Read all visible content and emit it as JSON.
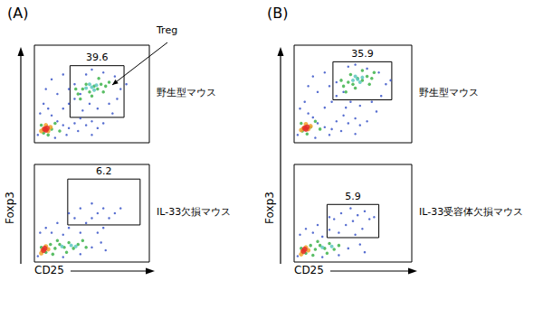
{
  "chart_data": [
    {
      "type": "scatter",
      "title": "野生型マウス",
      "xlim": [
        0,
        100
      ],
      "ylim": [
        0,
        100
      ],
      "tick_labels": false,
      "annotation": "Treg",
      "gate": {
        "x": [
          31,
          78
        ],
        "y": [
          26,
          79
        ],
        "value": 39.6
      },
      "series": [
        {
          "color": "#3a55c8",
          "values": [
            [
              5,
              30
            ],
            [
              8,
              40
            ],
            [
              12,
              35
            ],
            [
              15,
              28
            ],
            [
              20,
              22
            ],
            [
              25,
              18
            ],
            [
              30,
              15
            ],
            [
              35,
              20
            ],
            [
              40,
              25
            ],
            [
              38,
              12
            ],
            [
              45,
              18
            ],
            [
              50,
              22
            ],
            [
              55,
              15
            ],
            [
              60,
              20
            ],
            [
              25,
              35
            ],
            [
              30,
              40
            ],
            [
              35,
              45
            ],
            [
              40,
              50
            ],
            [
              35,
              60
            ],
            [
              30,
              55
            ],
            [
              45,
              70
            ],
            [
              50,
              75
            ],
            [
              60,
              72
            ],
            [
              70,
              68
            ],
            [
              75,
              55
            ],
            [
              72,
              45
            ],
            [
              65,
              40
            ],
            [
              55,
              35
            ],
            [
              48,
              40
            ],
            [
              80,
              60
            ],
            [
              20,
              50
            ],
            [
              10,
              55
            ],
            [
              15,
              65
            ],
            [
              25,
              70
            ],
            [
              42,
              33
            ],
            [
              68,
              30
            ],
            [
              3,
              8
            ],
            [
              18,
              5
            ],
            [
              28,
              8
            ],
            [
              50,
              8
            ]
          ]
        },
        {
          "color": "#3db34a",
          "values": [
            [
              8,
              10
            ],
            [
              12,
              8
            ],
            [
              15,
              14
            ],
            [
              6,
              18
            ],
            [
              18,
              20
            ],
            [
              22,
              12
            ],
            [
              38,
              50
            ],
            [
              42,
              55
            ],
            [
              48,
              52
            ],
            [
              52,
              58
            ],
            [
              55,
              55
            ],
            [
              58,
              60
            ],
            [
              45,
              60
            ],
            [
              50,
              48
            ],
            [
              62,
              58
            ],
            [
              40,
              45
            ],
            [
              60,
              52
            ],
            [
              65,
              62
            ],
            [
              36,
              55
            ],
            [
              56,
              66
            ]
          ]
        },
        {
          "color": "#5cc8c0",
          "values": [
            [
              45,
              56
            ],
            [
              50,
              57
            ],
            [
              54,
              59
            ],
            [
              48,
              60
            ],
            [
              52,
              54
            ]
          ]
        },
        {
          "color": "#f2a22a",
          "values": [
            [
              8,
              14
            ],
            [
              12,
              12
            ],
            [
              10,
              18
            ],
            [
              14,
              16
            ],
            [
              6,
              12
            ]
          ]
        },
        {
          "color": "#e3302a",
          "values": [
            [
              9,
              14
            ],
            [
              11,
              15
            ],
            [
              10,
              13
            ]
          ]
        }
      ]
    },
    {
      "type": "scatter",
      "title": "IL-33欠損マウス",
      "xlim": [
        0,
        100
      ],
      "ylim": [
        0,
        100
      ],
      "tick_labels": false,
      "gate": {
        "x": [
          29,
          92
        ],
        "y": [
          38,
          85
        ],
        "value": 6.2
      },
      "series": [
        {
          "color": "#3a55c8",
          "values": [
            [
              5,
              30
            ],
            [
              10,
              35
            ],
            [
              15,
              30
            ],
            [
              25,
              28
            ],
            [
              30,
              35
            ],
            [
              40,
              30
            ],
            [
              45,
              40
            ],
            [
              50,
              45
            ],
            [
              55,
              50
            ],
            [
              60,
              55
            ],
            [
              65,
              45
            ],
            [
              35,
              45
            ],
            [
              40,
              55
            ],
            [
              50,
              60
            ],
            [
              70,
              50
            ],
            [
              75,
              55
            ],
            [
              60,
              35
            ],
            [
              55,
              30
            ],
            [
              20,
              40
            ],
            [
              3,
              6
            ],
            [
              25,
              5
            ],
            [
              40,
              8
            ],
            [
              50,
              15
            ],
            [
              58,
              20
            ],
            [
              62,
              12
            ],
            [
              30,
              50
            ]
          ]
        },
        {
          "color": "#3db34a",
          "values": [
            [
              6,
              15
            ],
            [
              10,
              10
            ],
            [
              14,
              18
            ],
            [
              18,
              14
            ],
            [
              22,
              18
            ],
            [
              26,
              15
            ],
            [
              30,
              20
            ],
            [
              34,
              14
            ],
            [
              38,
              18
            ],
            [
              42,
              22
            ],
            [
              28,
              10
            ],
            [
              20,
              22
            ],
            [
              45,
              15
            ],
            [
              16,
              8
            ]
          ]
        },
        {
          "color": "#5cc8c0",
          "values": [
            [
              24,
              16
            ],
            [
              32,
              17
            ],
            [
              36,
              16
            ]
          ]
        },
        {
          "color": "#f2a22a",
          "values": [
            [
              7,
              12
            ],
            [
              10,
              16
            ],
            [
              12,
              13
            ],
            [
              6,
              9
            ]
          ]
        },
        {
          "color": "#e3302a",
          "values": [
            [
              8,
              12
            ],
            [
              9,
              14
            ]
          ]
        }
      ]
    },
    {
      "type": "scatter",
      "title": "野生型マウス",
      "xlim": [
        0,
        100
      ],
      "ylim": [
        0,
        100
      ],
      "tick_labels": false,
      "gate": {
        "x": [
          33,
          83
        ],
        "y": [
          44,
          83
        ],
        "value": 35.9
      },
      "series": [
        {
          "color": "#3a55c8",
          "values": [
            [
              5,
              35
            ],
            [
              9,
              42
            ],
            [
              12,
              30
            ],
            [
              16,
              26
            ],
            [
              20,
              20
            ],
            [
              26,
              16
            ],
            [
              32,
              14
            ],
            [
              36,
              22
            ],
            [
              42,
              28
            ],
            [
              40,
              12
            ],
            [
              46,
              20
            ],
            [
              52,
              25
            ],
            [
              56,
              18
            ],
            [
              62,
              22
            ],
            [
              26,
              36
            ],
            [
              32,
              42
            ],
            [
              36,
              48
            ],
            [
              42,
              52
            ],
            [
              36,
              62
            ],
            [
              30,
              58
            ],
            [
              46,
              78
            ],
            [
              52,
              80
            ],
            [
              62,
              76
            ],
            [
              72,
              72
            ],
            [
              78,
              60
            ],
            [
              74,
              48
            ],
            [
              66,
              42
            ],
            [
              56,
              38
            ],
            [
              48,
              42
            ],
            [
              82,
              64
            ],
            [
              20,
              52
            ],
            [
              12,
              58
            ],
            [
              16,
              68
            ],
            [
              26,
              72
            ],
            [
              44,
              36
            ],
            [
              70,
              32
            ],
            [
              3,
              8
            ],
            [
              18,
              5
            ],
            [
              30,
              8
            ],
            [
              52,
              9
            ]
          ]
        },
        {
          "color": "#3db34a",
          "values": [
            [
              7,
              12
            ],
            [
              11,
              9
            ],
            [
              14,
              16
            ],
            [
              6,
              20
            ],
            [
              18,
              22
            ],
            [
              22,
              14
            ],
            [
              42,
              58
            ],
            [
              46,
              62
            ],
            [
              50,
              60
            ],
            [
              54,
              66
            ],
            [
              58,
              64
            ],
            [
              62,
              68
            ],
            [
              48,
              70
            ],
            [
              52,
              56
            ],
            [
              66,
              66
            ],
            [
              44,
              52
            ],
            [
              64,
              60
            ],
            [
              68,
              72
            ],
            [
              40,
              64
            ],
            [
              58,
              74
            ]
          ]
        },
        {
          "color": "#5cc8c0",
          "values": [
            [
              50,
              64
            ],
            [
              54,
              65
            ],
            [
              58,
              67
            ],
            [
              52,
              68
            ],
            [
              56,
              62
            ]
          ]
        },
        {
          "color": "#f2a22a",
          "values": [
            [
              8,
              15
            ],
            [
              12,
              14
            ],
            [
              10,
              19
            ],
            [
              14,
              17
            ],
            [
              6,
              13
            ]
          ]
        },
        {
          "color": "#e3302a",
          "values": [
            [
              9,
              15
            ],
            [
              11,
              16
            ],
            [
              10,
              14
            ]
          ]
        }
      ]
    },
    {
      "type": "scatter",
      "title": "IL-33受容体欠損マウス",
      "xlim": [
        0,
        100
      ],
      "ylim": [
        0,
        100
      ],
      "tick_labels": false,
      "gate": {
        "x": [
          28,
          72
        ],
        "y": [
          25,
          59
        ],
        "value": 5.9
      },
      "series": [
        {
          "color": "#3a55c8",
          "values": [
            [
              5,
              28
            ],
            [
              10,
              34
            ],
            [
              16,
              30
            ],
            [
              24,
              26
            ],
            [
              30,
              33
            ],
            [
              38,
              30
            ],
            [
              44,
              38
            ],
            [
              50,
              42
            ],
            [
              54,
              48
            ],
            [
              60,
              52
            ],
            [
              64,
              44
            ],
            [
              34,
              44
            ],
            [
              40,
              50
            ],
            [
              48,
              55
            ],
            [
              68,
              46
            ],
            [
              58,
              34
            ],
            [
              52,
              28
            ],
            [
              20,
              38
            ],
            [
              3,
              6
            ],
            [
              24,
              5
            ],
            [
              38,
              7
            ],
            [
              46,
              14
            ],
            [
              56,
              18
            ],
            [
              60,
              10
            ],
            [
              30,
              46
            ]
          ]
        },
        {
          "color": "#3db34a",
          "values": [
            [
              6,
              14
            ],
            [
              10,
              9
            ],
            [
              14,
              17
            ],
            [
              18,
              13
            ],
            [
              22,
              17
            ],
            [
              26,
              14
            ],
            [
              30,
              19
            ],
            [
              34,
              13
            ],
            [
              38,
              17
            ],
            [
              28,
              9
            ],
            [
              20,
              21
            ],
            [
              16,
              7
            ]
          ]
        },
        {
          "color": "#5cc8c0",
          "values": [
            [
              24,
              15
            ],
            [
              32,
              16
            ]
          ]
        },
        {
          "color": "#f2a22a",
          "values": [
            [
              7,
              11
            ],
            [
              10,
              15
            ],
            [
              12,
              12
            ],
            [
              6,
              8
            ]
          ]
        },
        {
          "color": "#e3302a",
          "values": [
            [
              8,
              11
            ],
            [
              9,
              13
            ]
          ]
        }
      ]
    }
  ],
  "panels": [
    {
      "label": "(A)",
      "x_label": "CD25",
      "y_label": "Foxp3"
    },
    {
      "label": "(B)",
      "x_label": "CD25",
      "y_label": "Foxp3"
    }
  ]
}
